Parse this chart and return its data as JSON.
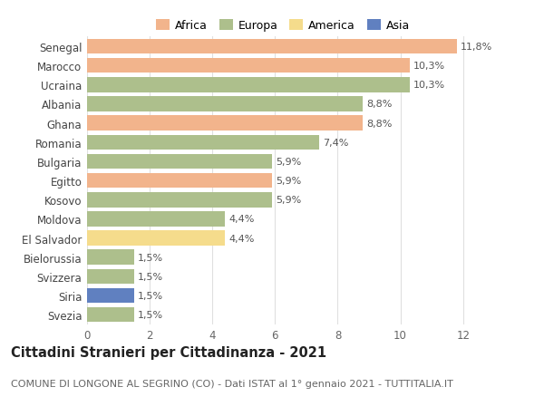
{
  "countries": [
    "Senegal",
    "Marocco",
    "Ucraina",
    "Albania",
    "Ghana",
    "Romania",
    "Bulgaria",
    "Egitto",
    "Kosovo",
    "Moldova",
    "El Salvador",
    "Bielorussia",
    "Svizzera",
    "Siria",
    "Svezia"
  ],
  "values": [
    11.8,
    10.3,
    10.3,
    8.8,
    8.8,
    7.4,
    5.9,
    5.9,
    5.9,
    4.4,
    4.4,
    1.5,
    1.5,
    1.5,
    1.5
  ],
  "labels": [
    "11,8%",
    "10,3%",
    "10,3%",
    "8,8%",
    "8,8%",
    "7,4%",
    "5,9%",
    "5,9%",
    "5,9%",
    "4,4%",
    "4,4%",
    "1,5%",
    "1,5%",
    "1,5%",
    "1,5%"
  ],
  "colors": [
    "#F2B48C",
    "#F2B48C",
    "#ADBF8C",
    "#ADBF8C",
    "#F2B48C",
    "#ADBF8C",
    "#ADBF8C",
    "#F2B48C",
    "#ADBF8C",
    "#ADBF8C",
    "#F5DC8C",
    "#ADBF8C",
    "#ADBF8C",
    "#6080C0",
    "#ADBF8C"
  ],
  "legend_labels": [
    "Africa",
    "Europa",
    "America",
    "Asia"
  ],
  "legend_colors": [
    "#F2B48C",
    "#ADBF8C",
    "#F5DC8C",
    "#6080C0"
  ],
  "title": "Cittadini Stranieri per Cittadinanza - 2021",
  "subtitle": "COMUNE DI LONGONE AL SEGRINO (CO) - Dati ISTAT al 1° gennaio 2021 - TUTTITALIA.IT",
  "xlim": [
    0,
    12.5
  ],
  "xticks": [
    0,
    2,
    4,
    6,
    8,
    10,
    12
  ],
  "background_color": "#ffffff",
  "bar_height": 0.78,
  "title_fontsize": 10.5,
  "subtitle_fontsize": 8,
  "tick_fontsize": 8.5,
  "label_fontsize": 8
}
